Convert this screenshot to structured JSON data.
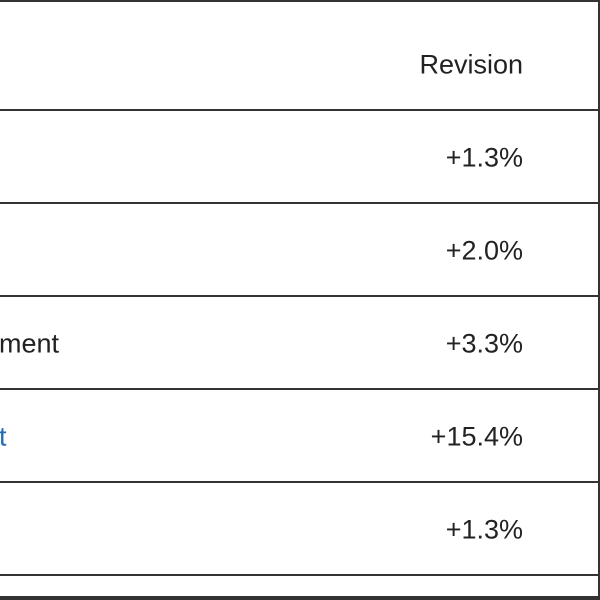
{
  "table": {
    "header": "Revision",
    "rows": [
      {
        "revision": "+1.3%"
      },
      {
        "revision": "+2.0%"
      },
      {
        "label": "ment",
        "revision": "+3.3%"
      },
      {
        "label": "t",
        "revision": "+15.4%"
      },
      {
        "revision": "+1.3%"
      }
    ]
  }
}
